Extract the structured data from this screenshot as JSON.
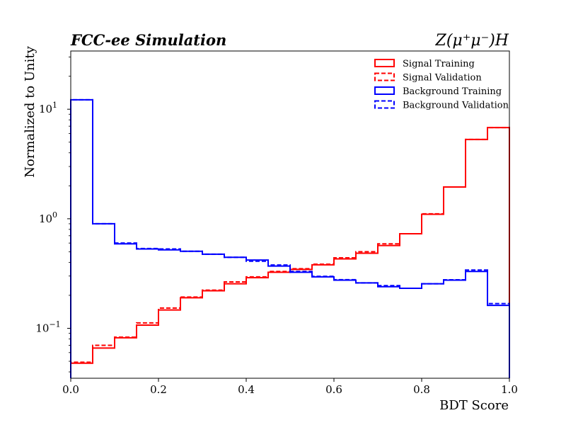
{
  "chart_data": {
    "type": "step-histogram",
    "title_left": "FCC-ee Simulation",
    "title_right": "Z(μ⁺μ⁻)H",
    "xlabel": "BDT Score",
    "ylabel": "Normalized to Unity",
    "xlim": [
      0.0,
      1.0
    ],
    "ylim": [
      0.035,
      34
    ],
    "yscale": "log",
    "x_ticks": [
      0.0,
      0.2,
      0.4,
      0.6,
      0.8,
      1.0
    ],
    "x_tick_labels": [
      "0.0",
      "0.2",
      "0.4",
      "0.6",
      "0.8",
      "1.0"
    ],
    "y_major_ticks": [
      {
        "value": 0.1,
        "base": "10",
        "exp": "−1"
      },
      {
        "value": 1,
        "base": "10",
        "exp": "0"
      },
      {
        "value": 10,
        "base": "10",
        "exp": "1"
      }
    ],
    "bin_edges": [
      0.0,
      0.05,
      0.1,
      0.15,
      0.2,
      0.25,
      0.3,
      0.35,
      0.4,
      0.45,
      0.5,
      0.55,
      0.6,
      0.65,
      0.7,
      0.75,
      0.8,
      0.85,
      0.9,
      0.95,
      1.0
    ],
    "legend_position": "upper right",
    "series": [
      {
        "name": "Signal Training",
        "color": "#ff0000",
        "dashed": false,
        "values": [
          0.048,
          0.066,
          0.082,
          0.107,
          0.147,
          0.19,
          0.22,
          0.255,
          0.29,
          0.325,
          0.345,
          0.38,
          0.43,
          0.485,
          0.57,
          0.73,
          1.1,
          1.95,
          5.3,
          6.8
        ]
      },
      {
        "name": "Signal Validation",
        "color": "#ff0000",
        "dashed": true,
        "values": [
          0.049,
          0.07,
          0.083,
          0.112,
          0.153,
          0.193,
          0.223,
          0.265,
          0.295,
          0.33,
          0.35,
          0.385,
          0.44,
          0.5,
          0.59,
          0.73,
          1.11,
          1.95,
          5.3,
          6.8
        ]
      },
      {
        "name": "Background Training",
        "color": "#0000ff",
        "dashed": false,
        "values": [
          12.2,
          0.9,
          0.59,
          0.53,
          0.52,
          0.505,
          0.475,
          0.445,
          0.42,
          0.37,
          0.325,
          0.295,
          0.275,
          0.26,
          0.24,
          0.232,
          0.255,
          0.275,
          0.33,
          0.162
        ]
      },
      {
        "name": "Background Validation",
        "color": "#0000ff",
        "dashed": true,
        "values": [
          12.2,
          0.9,
          0.6,
          0.535,
          0.53,
          0.505,
          0.475,
          0.445,
          0.41,
          0.378,
          0.33,
          0.298,
          0.278,
          0.26,
          0.245,
          0.232,
          0.255,
          0.277,
          0.34,
          0.168
        ]
      }
    ]
  }
}
